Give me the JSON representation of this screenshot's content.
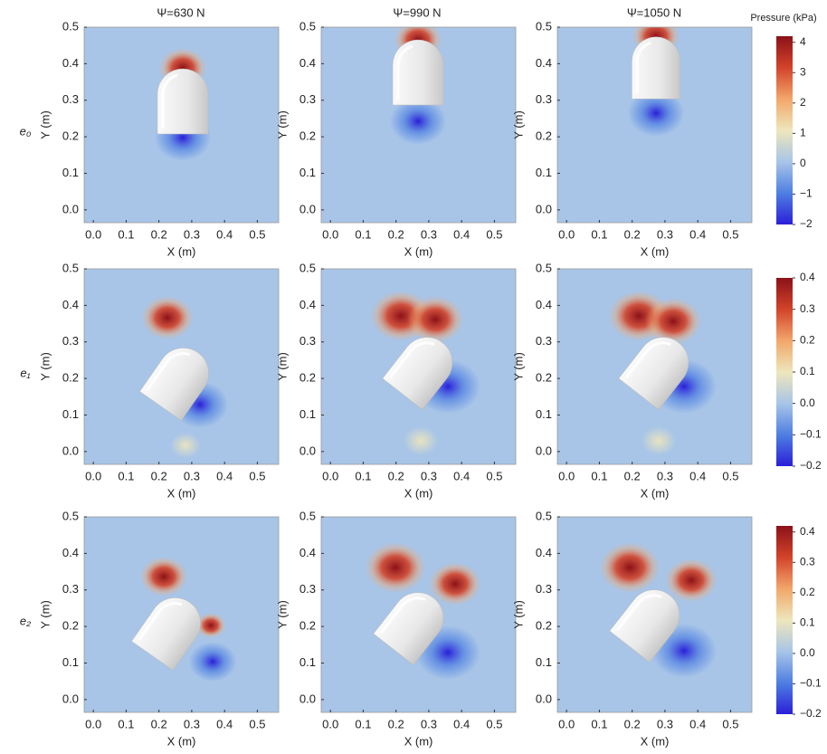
{
  "chart_data": {
    "type": "heatmap-grid",
    "columns": [
      "Ψ=630 N",
      "Ψ=990 N",
      "Ψ=1050 N"
    ],
    "colorbar_title": "Pressure (kPa)",
    "colormap": [
      "#2a1fd8",
      "#4e7fe2",
      "#a8c5e8",
      "#eee6bb",
      "#f2a66a",
      "#d2432b",
      "#8c1117"
    ],
    "xlabel": "X (m)",
    "ylabel": "Y (m)",
    "xlim": [
      -0.028,
      0.565
    ],
    "ylim": [
      -0.035,
      0.5
    ],
    "xticks": [
      {
        "value": 0,
        "label": "0.0"
      },
      {
        "value": 0.1,
        "label": "0.1"
      },
      {
        "value": 0.2,
        "label": "0.2"
      },
      {
        "value": 0.3,
        "label": "0.3"
      },
      {
        "value": 0.4,
        "label": "0.4"
      },
      {
        "value": 0.5,
        "label": "0.5"
      }
    ],
    "yticks": [
      {
        "value": 0,
        "label": "0.0"
      },
      {
        "value": 0.1,
        "label": "0.1"
      },
      {
        "value": 0.2,
        "label": "0.2"
      },
      {
        "value": 0.3,
        "label": "0.3"
      },
      {
        "value": 0.4,
        "label": "0.4"
      },
      {
        "value": 0.5,
        "label": "0.5"
      }
    ],
    "rows": [
      {
        "label": "e₀",
        "clim": [
          -2,
          4.2
        ],
        "cticks": [
          4,
          3,
          2,
          1,
          0,
          {
            "value": -1,
            "label": "−1"
          },
          {
            "value": -2,
            "label": "−2"
          }
        ]
      },
      {
        "label": "e₁",
        "clim": [
          -0.2,
          0.4
        ],
        "cticks": [
          0.4,
          0.3,
          0.2,
          0.1,
          {
            "value": 0,
            "label": "0.0"
          },
          {
            "value": -0.1,
            "label": "−0.1"
          },
          {
            "value": -0.2,
            "label": "−0.2"
          }
        ]
      },
      {
        "label": "e₂",
        "clim": [
          -0.2,
          0.42
        ],
        "cticks": [
          0.4,
          0.3,
          0.2,
          0.1,
          {
            "value": 0,
            "label": "0.0"
          },
          {
            "value": -0.1,
            "label": "−0.1"
          },
          {
            "value": -0.2,
            "label": "−0.2"
          }
        ]
      }
    ]
  }
}
